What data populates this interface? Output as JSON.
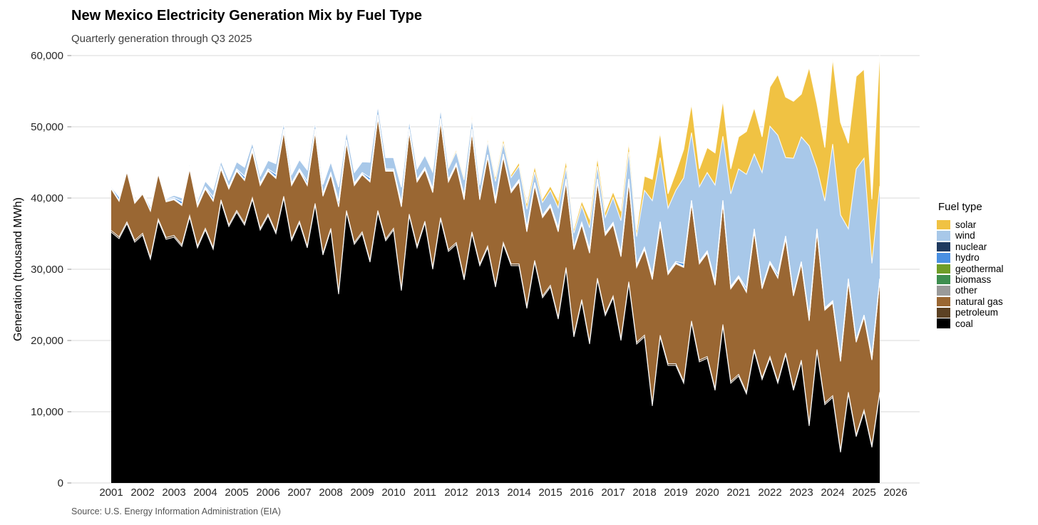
{
  "title": "New Mexico Electricity Generation Mix by Fuel Type",
  "subtitle": "Quarterly generation through Q3 2025",
  "source": "Source: U.S. Energy Information Administration (EIA)",
  "legend": {
    "title": "Fuel type"
  },
  "chart_data": {
    "type": "area",
    "stacked": true,
    "title": "New Mexico Electricity Generation Mix by Fuel Type",
    "subtitle": "Quarterly generation through Q3 2025",
    "xlabel": "",
    "ylabel": "Generation (thousand MWh)",
    "ylim": [
      0,
      60000
    ],
    "y_ticks": [
      0,
      10000,
      20000,
      30000,
      40000,
      50000,
      60000
    ],
    "x_tick_labels": [
      "2001",
      "2002",
      "2003",
      "2004",
      "2005",
      "2006",
      "2007",
      "2008",
      "2009",
      "2010",
      "2011",
      "2012",
      "2013",
      "2014",
      "2015",
      "2016",
      "2017",
      "2018",
      "2019",
      "2020",
      "2021",
      "2022",
      "2023",
      "2024",
      "2025",
      "2026"
    ],
    "grid": true,
    "legend_position": "right",
    "units": "thousand MWh",
    "categories": [
      "2001 Q1",
      "2001 Q2",
      "2001 Q3",
      "2001 Q4",
      "2002 Q1",
      "2002 Q2",
      "2002 Q3",
      "2002 Q4",
      "2003 Q1",
      "2003 Q2",
      "2003 Q3",
      "2003 Q4",
      "2004 Q1",
      "2004 Q2",
      "2004 Q3",
      "2004 Q4",
      "2005 Q1",
      "2005 Q2",
      "2005 Q3",
      "2005 Q4",
      "2006 Q1",
      "2006 Q2",
      "2006 Q3",
      "2006 Q4",
      "2007 Q1",
      "2007 Q2",
      "2007 Q3",
      "2007 Q4",
      "2008 Q1",
      "2008 Q2",
      "2008 Q3",
      "2008 Q4",
      "2009 Q1",
      "2009 Q2",
      "2009 Q3",
      "2009 Q4",
      "2010 Q1",
      "2010 Q2",
      "2010 Q3",
      "2010 Q4",
      "2011 Q1",
      "2011 Q2",
      "2011 Q3",
      "2011 Q4",
      "2012 Q1",
      "2012 Q2",
      "2012 Q3",
      "2012 Q4",
      "2013 Q1",
      "2013 Q2",
      "2013 Q3",
      "2013 Q4",
      "2014 Q1",
      "2014 Q2",
      "2014 Q3",
      "2014 Q4",
      "2015 Q1",
      "2015 Q2",
      "2015 Q3",
      "2015 Q4",
      "2016 Q1",
      "2016 Q2",
      "2016 Q3",
      "2016 Q4",
      "2017 Q1",
      "2017 Q2",
      "2017 Q3",
      "2017 Q4",
      "2018 Q1",
      "2018 Q2",
      "2018 Q3",
      "2018 Q4",
      "2019 Q1",
      "2019 Q2",
      "2019 Q3",
      "2019 Q4",
      "2020 Q1",
      "2020 Q2",
      "2020 Q3",
      "2020 Q4",
      "2021 Q1",
      "2021 Q2",
      "2021 Q3",
      "2021 Q4",
      "2022 Q1",
      "2022 Q2",
      "2022 Q3",
      "2022 Q4",
      "2023 Q1",
      "2023 Q2",
      "2023 Q3",
      "2023 Q4",
      "2024 Q1",
      "2024 Q2",
      "2024 Q3",
      "2024 Q4",
      "2025 Q1",
      "2025 Q2",
      "2025 Q3"
    ],
    "series": [
      {
        "id": "coal",
        "name": "coal",
        "color": "#000000",
        "values": [
          35200,
          34300,
          36400,
          33800,
          34800,
          31400,
          36800,
          34200,
          34500,
          33200,
          37300,
          33000,
          35500,
          32800,
          39500,
          36000,
          38000,
          36200,
          39800,
          35500,
          37500,
          35000,
          40000,
          34000,
          36500,
          33000,
          39000,
          32000,
          35500,
          26500,
          38000,
          33500,
          35000,
          31000,
          38000,
          34000,
          35500,
          27000,
          37500,
          33000,
          36500,
          30000,
          37000,
          32500,
          33500,
          28500,
          35000,
          30500,
          33000,
          27500,
          33500,
          30500,
          30500,
          24500,
          31000,
          26000,
          27500,
          23000,
          30000,
          20500,
          25500,
          19500,
          28500,
          23500,
          26000,
          20000,
          28000,
          19500,
          20500,
          10800,
          20500,
          16500,
          16500,
          14000,
          22500,
          17000,
          17500,
          13000,
          22000,
          14000,
          15000,
          12500,
          18500,
          14500,
          17500,
          14000,
          18000,
          13000,
          17000,
          8000,
          18500,
          11000,
          12000,
          4300,
          12500,
          6500,
          10000,
          5000,
          12500
        ]
      },
      {
        "id": "petroleum",
        "name": "petroleum",
        "color": "#5c4123",
        "values": 250
      },
      {
        "id": "natural-gas",
        "name": "natural gas",
        "color": "#9a6733",
        "values": [
          5800,
          5000,
          7000,
          5200,
          5500,
          6500,
          6300,
          5000,
          5000,
          5500,
          6500,
          5500,
          5500,
          6500,
          4300,
          5000,
          5500,
          6000,
          6500,
          6000,
          6000,
          7500,
          9000,
          7500,
          7000,
          8500,
          10000,
          8000,
          7500,
          12000,
          9500,
          8000,
          8000,
          11000,
          13000,
          9500,
          8000,
          11500,
          11500,
          9000,
          7200,
          10500,
          13500,
          9500,
          10800,
          11000,
          14000,
          9000,
          12500,
          11500,
          12000,
          10000,
          11500,
          10500,
          10500,
          11000,
          11000,
          12000,
          12000,
          12000,
          10500,
          12500,
          13500,
          11000,
          10000,
          11500,
          14000,
          10500,
          12000,
          17500,
          15500,
          12500,
          14000,
          16000,
          16500,
          13500,
          14500,
          14500,
          17000,
          13000,
          13500,
          14000,
          16500,
          12500,
          13000,
          14500,
          16000,
          13000,
          13500,
          14500,
          16500,
          13000,
          13000,
          12500,
          15500,
          13000,
          13000,
          12000,
          15500
        ]
      },
      {
        "id": "other",
        "name": "other",
        "color": "#9a9a9a",
        "values": 100
      },
      {
        "id": "biomass",
        "name": "biomass",
        "color": "#3e8e50",
        "values": 50
      },
      {
        "id": "geothermal",
        "name": "geothermal",
        "color": "#6f9d28",
        "values": 30
      },
      {
        "id": "hydro",
        "name": "hydro",
        "color": "#4a90e2",
        "values": [
          150,
          400,
          250,
          150,
          150,
          400,
          250,
          150,
          150,
          400,
          250,
          150,
          150,
          400,
          250,
          150,
          150,
          400,
          250,
          150,
          150,
          400,
          250,
          150,
          150,
          400,
          250,
          150,
          150,
          600,
          250,
          150,
          150,
          400,
          250,
          150,
          150,
          400,
          250,
          150,
          150,
          400,
          250,
          150,
          150,
          400,
          250,
          150,
          150,
          400,
          250,
          150,
          150,
          400,
          250,
          150,
          150,
          400,
          250,
          150,
          150,
          400,
          250,
          150,
          150,
          400,
          250,
          150,
          150,
          400,
          250,
          150,
          150,
          400,
          250,
          150,
          150,
          400,
          250,
          150,
          150,
          400,
          250,
          150,
          150,
          400,
          250,
          150,
          150,
          400,
          250,
          150,
          150,
          400,
          250,
          150,
          150,
          400,
          250
        ]
      },
      {
        "id": "nuclear",
        "name": "nuclear",
        "color": "#1f3a5f",
        "values": 0
      },
      {
        "id": "wind",
        "name": "wind",
        "color": "#a8c8e9",
        "values": [
          50,
          100,
          50,
          100,
          100,
          150,
          100,
          150,
          300,
          500,
          400,
          500,
          800,
          1000,
          700,
          900,
          1000,
          1300,
          800,
          1000,
          1200,
          1500,
          900,
          1200,
          1300,
          1600,
          1000,
          1300,
          1500,
          2000,
          1200,
          1500,
          1500,
          2200,
          1300,
          1600,
          1600,
          2200,
          1200,
          1500,
          1700,
          2300,
          1300,
          1600,
          1600,
          2200,
          1400,
          1700,
          1800,
          2500,
          1500,
          1800,
          1900,
          2600,
          1500,
          1800,
          2000,
          2800,
          1600,
          2000,
          2300,
          3000,
          1800,
          2200,
          3500,
          4500,
          3800,
          4000,
          8000,
          10500,
          9000,
          9000,
          10000,
          12000,
          9500,
          10500,
          11000,
          13500,
          9000,
          13000,
          15000,
          16000,
          10500,
          16000,
          19000,
          19500,
          11000,
          19000,
          17500,
          24000,
          8500,
          15000,
          22000,
          20000,
          7000,
          24000,
          22000,
          13000,
          13000
        ]
      },
      {
        "id": "solar",
        "name": "solar",
        "color": "#f0c243",
        "values": [
          0,
          0,
          0,
          0,
          0,
          0,
          0,
          0,
          0,
          0,
          0,
          0,
          0,
          0,
          0,
          0,
          0,
          0,
          0,
          0,
          0,
          0,
          0,
          0,
          0,
          0,
          0,
          0,
          0,
          0,
          0,
          0,
          0,
          0,
          0,
          0,
          0,
          0,
          0,
          0,
          100,
          200,
          200,
          200,
          300,
          400,
          500,
          300,
          400,
          600,
          600,
          400,
          500,
          800,
          800,
          500,
          600,
          1000,
          1000,
          600,
          700,
          1200,
          1200,
          800,
          800,
          1300,
          1300,
          900,
          2000,
          3000,
          3500,
          2000,
          2500,
          4000,
          4000,
          2500,
          3500,
          4500,
          5000,
          3500,
          4500,
          6000,
          6500,
          5000,
          5500,
          8500,
          8500,
          8000,
          6000,
          11000,
          9000,
          7500,
          12000,
          13000,
          12000,
          13000,
          12500,
          9000,
          18500
        ]
      }
    ],
    "style": {
      "gridline_color": "#d9d9d9",
      "tick_color": "#8c8c8c",
      "axis_text_color": "#262626",
      "area_outline_color": "rgba(255,255,255,0.9)"
    }
  }
}
